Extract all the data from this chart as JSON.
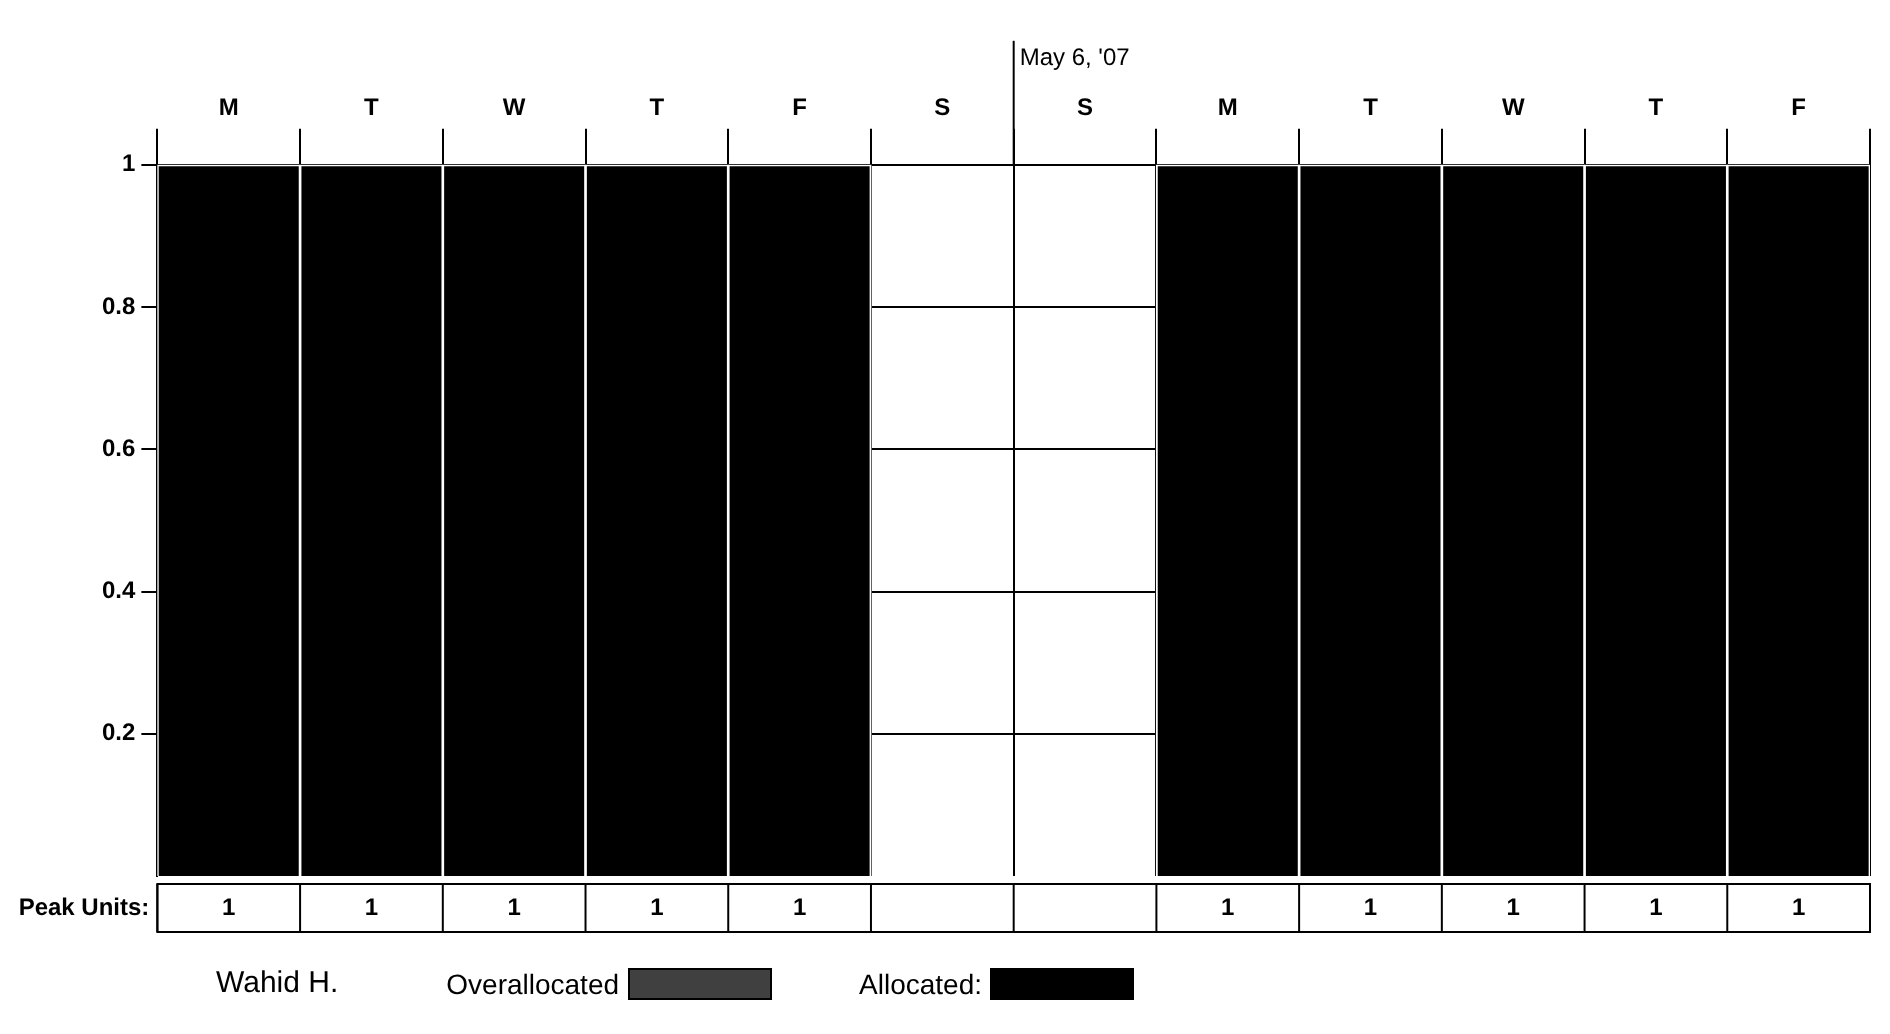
{
  "chart_data": {
    "type": "bar",
    "categories": [
      "M",
      "T",
      "W",
      "T",
      "F",
      "S",
      "S",
      "M",
      "T",
      "W",
      "T",
      "F"
    ],
    "series": [
      {
        "name": "Overallocated",
        "color": "#404040",
        "values": [
          0,
          0,
          0,
          0,
          0,
          0,
          0,
          0,
          0,
          0,
          0,
          0
        ]
      },
      {
        "name": "Allocated:",
        "color": "#000000",
        "values": [
          1,
          1,
          1,
          1,
          1,
          0,
          0,
          1,
          1,
          1,
          1,
          1
        ],
        "value_labels": [
          "1",
          "1",
          "1",
          "1",
          "1",
          null,
          null,
          "1",
          "1",
          "1",
          "1",
          "1"
        ]
      }
    ],
    "stacked": true,
    "ylim": [
      0,
      1
    ],
    "yticks": [
      0.2,
      0.4,
      0.6,
      0.8,
      1
    ],
    "grid": true,
    "legend": "bottom",
    "annotations": [
      "May 6, '07",
      "Peak Units:",
      "Wahid H."
    ]
  }
}
